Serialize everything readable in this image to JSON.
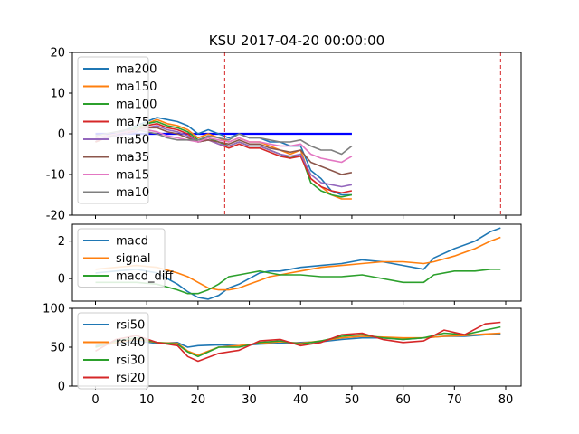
{
  "title": "KSU 2017-04-20 00:00:00",
  "chart_data": [
    {
      "type": "line",
      "name": "moving-averages",
      "ylim": [
        -20,
        20
      ],
      "xlim": [
        -4.5,
        83
      ],
      "yticks": [
        -20,
        -10,
        0,
        10,
        20
      ],
      "vlines": [
        25.2,
        79
      ],
      "hline": {
        "y": 0,
        "x": [
          0,
          50
        ],
        "color": "#0000ff"
      },
      "legend": "upper-left",
      "series": [
        {
          "name": "ma200",
          "color": "#1f77b4",
          "x": [
            0,
            2,
            4,
            6,
            8,
            10,
            12,
            14,
            16,
            18,
            20,
            22,
            24,
            26,
            28,
            30,
            32,
            34,
            36,
            38,
            40,
            42,
            44,
            46,
            48,
            50
          ],
          "values": [
            -2,
            -1,
            0,
            1,
            2,
            3,
            4,
            3.5,
            3,
            2,
            0,
            1,
            0,
            -1,
            0,
            -1,
            -1,
            -2,
            -2,
            -3,
            -3,
            -9,
            -11,
            -14,
            -15,
            -15
          ]
        },
        {
          "name": "ma150",
          "color": "#ff7f0e",
          "x": [
            0,
            2,
            4,
            6,
            8,
            10,
            12,
            14,
            16,
            18,
            20,
            22,
            24,
            26,
            28,
            30,
            32,
            34,
            36,
            38,
            40,
            42,
            44,
            46,
            48,
            50
          ],
          "values": [
            -2,
            -1,
            0,
            0.5,
            1.5,
            2.5,
            3.5,
            2.5,
            2,
            1,
            -1,
            0,
            -1,
            -2,
            -1,
            -2,
            -2,
            -3,
            -4,
            -5,
            -4,
            -11,
            -13,
            -15,
            -16,
            -16
          ]
        },
        {
          "name": "ma100",
          "color": "#2ca02c",
          "x": [
            0,
            2,
            4,
            6,
            8,
            10,
            12,
            14,
            16,
            18,
            20,
            22,
            24,
            26,
            28,
            30,
            32,
            34,
            36,
            38,
            40,
            42,
            44,
            46,
            48,
            50
          ],
          "values": [
            -2,
            -1,
            0,
            0.5,
            1.5,
            2.5,
            3,
            2,
            1.5,
            0.5,
            -1.5,
            -1,
            -2,
            -3,
            -2,
            -3,
            -3,
            -4,
            -5,
            -6,
            -5,
            -12,
            -14,
            -15,
            -15.5,
            -15
          ]
        },
        {
          "name": "ma75",
          "color": "#d62728",
          "x": [
            0,
            2,
            4,
            6,
            8,
            10,
            12,
            14,
            16,
            18,
            20,
            22,
            24,
            26,
            28,
            30,
            32,
            34,
            36,
            38,
            40,
            42,
            44,
            46,
            48,
            50
          ],
          "values": [
            -2,
            -1,
            -0.5,
            0,
            1,
            2,
            2.5,
            1.5,
            1,
            0,
            -2,
            -1.5,
            -2.5,
            -3.5,
            -2.5,
            -3.5,
            -3.5,
            -4.5,
            -5.5,
            -6,
            -5.5,
            -11,
            -13,
            -14,
            -14.5,
            -14
          ]
        },
        {
          "name": "ma50",
          "color": "#9467bd",
          "x": [
            0,
            2,
            4,
            6,
            8,
            10,
            12,
            14,
            16,
            18,
            20,
            22,
            24,
            26,
            28,
            30,
            32,
            34,
            36,
            38,
            40,
            42,
            44,
            46,
            48,
            50
          ],
          "values": [
            -1.5,
            -1,
            -0.5,
            0,
            0.5,
            1.5,
            2,
            1,
            0.5,
            -0.5,
            -2,
            -1.5,
            -2.5,
            -3,
            -2,
            -3,
            -3,
            -4,
            -5,
            -5.5,
            -5,
            -10,
            -12,
            -12.5,
            -13,
            -12.5
          ]
        },
        {
          "name": "ma35",
          "color": "#8c564b",
          "x": [
            0,
            2,
            4,
            6,
            8,
            10,
            12,
            14,
            16,
            18,
            20,
            22,
            24,
            26,
            28,
            30,
            32,
            34,
            36,
            38,
            40,
            42,
            44,
            46,
            48,
            50
          ],
          "values": [
            -1,
            -0.5,
            0,
            0.5,
            1,
            1.5,
            1.5,
            0.5,
            0,
            -1,
            -2,
            -1.5,
            -2,
            -2.5,
            -1.5,
            -2.5,
            -2.5,
            -3.5,
            -4,
            -4.5,
            -4,
            -7,
            -8,
            -9,
            -10,
            -9.5
          ]
        },
        {
          "name": "ma15",
          "color": "#e377c2",
          "x": [
            0,
            2,
            4,
            6,
            8,
            10,
            12,
            14,
            16,
            18,
            20,
            22,
            24,
            26,
            28,
            30,
            32,
            34,
            36,
            38,
            40,
            42,
            44,
            46,
            48,
            50
          ],
          "values": [
            -1,
            -0.5,
            0,
            0.5,
            1,
            1,
            0.5,
            -0.5,
            -1,
            -1.5,
            -2,
            -1,
            -1.5,
            -2,
            -1,
            -2,
            -2,
            -2.5,
            -3,
            -3,
            -2.5,
            -5,
            -6,
            -6.5,
            -7,
            -5.5
          ]
        },
        {
          "name": "ma10",
          "color": "#7f7f7f",
          "x": [
            0,
            2,
            4,
            6,
            8,
            10,
            12,
            14,
            16,
            18,
            20,
            22,
            24,
            26,
            28,
            30,
            32,
            34,
            36,
            38,
            40,
            42,
            44,
            46,
            48,
            50
          ],
          "values": [
            -0.5,
            0,
            0.5,
            1,
            1,
            0.5,
            0,
            -1,
            -1.5,
            -1.5,
            -1.5,
            -0.5,
            -1,
            -1.5,
            0,
            -1,
            -1,
            -1.5,
            -2,
            -2,
            -1.5,
            -3,
            -4,
            -4,
            -5,
            -3
          ]
        }
      ]
    },
    {
      "type": "line",
      "name": "macd",
      "ylim": [
        -1.2,
        2.9
      ],
      "xlim": [
        -4.5,
        83
      ],
      "yticks": [
        0,
        2
      ],
      "legend": "upper-left",
      "series": [
        {
          "name": "macd",
          "color": "#1f77b4",
          "x": [
            0,
            4,
            8,
            12,
            16,
            18,
            20,
            22,
            24,
            26,
            28,
            30,
            32,
            34,
            36,
            38,
            40,
            44,
            48,
            52,
            56,
            60,
            64,
            66,
            70,
            74,
            77,
            79
          ],
          "values": [
            0.3,
            0.4,
            0.5,
            0.3,
            -0.3,
            -0.7,
            -1.0,
            -1.1,
            -0.9,
            -0.5,
            -0.3,
            0.0,
            0.3,
            0.4,
            0.4,
            0.5,
            0.6,
            0.7,
            0.8,
            1.0,
            0.9,
            0.7,
            0.5,
            1.1,
            1.6,
            2.0,
            2.5,
            2.7
          ]
        },
        {
          "name": "signal",
          "color": "#ff7f0e",
          "x": [
            0,
            4,
            8,
            12,
            16,
            18,
            20,
            22,
            24,
            26,
            28,
            30,
            32,
            34,
            36,
            38,
            40,
            44,
            48,
            52,
            56,
            60,
            64,
            66,
            70,
            74,
            77,
            79
          ],
          "values": [
            0.5,
            0.6,
            0.7,
            0.6,
            0.3,
            0.1,
            -0.2,
            -0.5,
            -0.6,
            -0.6,
            -0.5,
            -0.3,
            -0.1,
            0.1,
            0.2,
            0.3,
            0.4,
            0.6,
            0.7,
            0.8,
            0.9,
            0.9,
            0.8,
            0.9,
            1.2,
            1.6,
            2.0,
            2.2
          ]
        },
        {
          "name": "macd_diff",
          "color": "#2ca02c",
          "x": [
            0,
            4,
            8,
            12,
            16,
            18,
            20,
            22,
            24,
            26,
            28,
            30,
            32,
            34,
            36,
            38,
            40,
            44,
            48,
            52,
            56,
            60,
            64,
            66,
            70,
            74,
            77,
            79
          ],
          "values": [
            -0.2,
            -0.2,
            -0.2,
            -0.3,
            -0.6,
            -0.8,
            -0.8,
            -0.6,
            -0.3,
            0.1,
            0.2,
            0.3,
            0.4,
            0.3,
            0.2,
            0.2,
            0.2,
            0.1,
            0.1,
            0.2,
            0.0,
            -0.2,
            -0.2,
            0.2,
            0.4,
            0.4,
            0.5,
            0.5
          ]
        }
      ]
    },
    {
      "type": "line",
      "name": "rsi",
      "ylim": [
        0,
        100
      ],
      "xlim": [
        -4.5,
        83
      ],
      "yticks": [
        0,
        50,
        100
      ],
      "xticks": [
        0,
        10,
        20,
        30,
        40,
        50,
        60,
        70,
        80
      ],
      "legend": "upper-left",
      "series": [
        {
          "name": "rsi50",
          "color": "#1f77b4",
          "x": [
            0,
            4,
            8,
            12,
            16,
            18,
            20,
            24,
            28,
            32,
            36,
            40,
            44,
            48,
            52,
            56,
            60,
            64,
            68,
            72,
            76,
            79
          ],
          "values": [
            52,
            55,
            58,
            55,
            56,
            50,
            52,
            53,
            52,
            54,
            55,
            56,
            57,
            60,
            62,
            62,
            60,
            62,
            64,
            64,
            66,
            67
          ]
        },
        {
          "name": "rsi40",
          "color": "#ff7f0e",
          "x": [
            0,
            4,
            8,
            12,
            16,
            18,
            20,
            24,
            28,
            32,
            36,
            40,
            44,
            48,
            52,
            56,
            60,
            64,
            68,
            72,
            76,
            79
          ],
          "values": [
            50,
            56,
            60,
            56,
            55,
            45,
            40,
            50,
            52,
            55,
            57,
            55,
            58,
            62,
            64,
            63,
            62,
            62,
            64,
            65,
            67,
            68
          ]
        },
        {
          "name": "rsi30",
          "color": "#2ca02c",
          "x": [
            0,
            4,
            8,
            12,
            16,
            18,
            20,
            24,
            28,
            32,
            36,
            40,
            44,
            48,
            52,
            56,
            60,
            64,
            68,
            72,
            76,
            79
          ],
          "values": [
            50,
            58,
            62,
            56,
            54,
            44,
            38,
            50,
            50,
            56,
            58,
            54,
            58,
            64,
            66,
            62,
            60,
            62,
            68,
            66,
            72,
            76
          ]
        },
        {
          "name": "rsi20",
          "color": "#d62728",
          "x": [
            0,
            4,
            8,
            12,
            16,
            18,
            20,
            24,
            28,
            32,
            36,
            40,
            44,
            48,
            52,
            56,
            60,
            64,
            68,
            72,
            76,
            79
          ],
          "values": [
            45,
            60,
            65,
            56,
            52,
            38,
            32,
            42,
            46,
            58,
            60,
            52,
            56,
            66,
            68,
            60,
            56,
            58,
            72,
            66,
            80,
            82
          ]
        }
      ]
    }
  ]
}
